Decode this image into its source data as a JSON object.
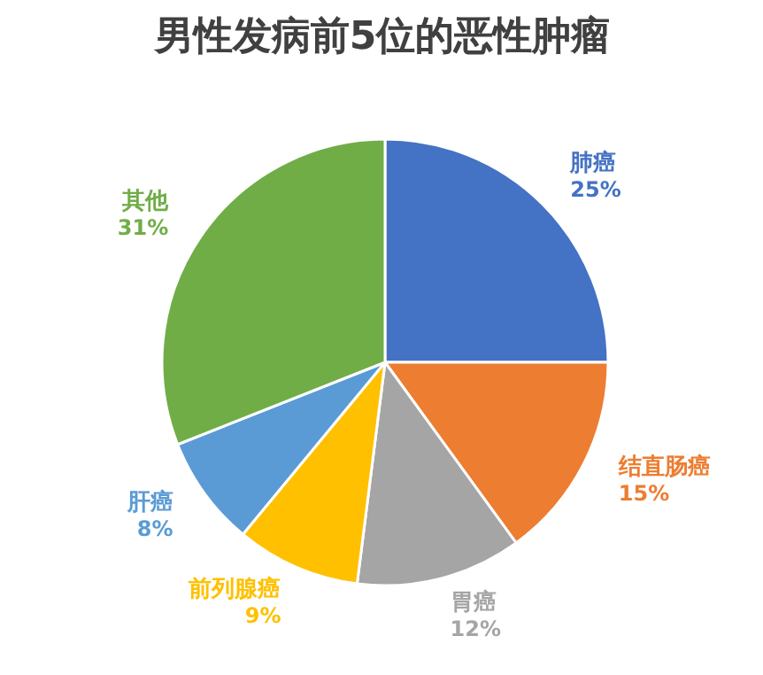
{
  "chart_data": {
    "type": "pie",
    "title": "男性发病前5位的恶性肿瘤",
    "categories": [
      "肺癌",
      "结直肠癌",
      "胃癌",
      "前列腺癌",
      "肝癌",
      "其他"
    ],
    "values": [
      25,
      15,
      12,
      9,
      8,
      31
    ],
    "colors": [
      "#4472c4",
      "#ed7d31",
      "#a5a5a5",
      "#ffc000",
      "#5b9bd5",
      "#70ad47"
    ],
    "value_labels": [
      "25%",
      "15%",
      "12%",
      "9%",
      "8%",
      "31%"
    ]
  }
}
